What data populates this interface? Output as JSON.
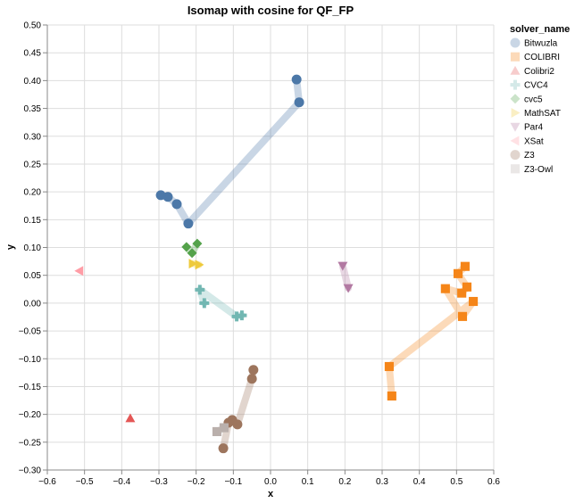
{
  "chart_data": {
    "type": "scatter",
    "title": "Isomap with cosine for QF_FP",
    "xlabel": "x",
    "ylabel": "y",
    "xlim": [
      -0.6,
      0.6
    ],
    "ylim": [
      -0.3,
      0.5
    ],
    "x_ticks": [
      "−0.6",
      "−0.5",
      "−0.4",
      "−0.3",
      "−0.2",
      "−0.1",
      "0.0",
      "0.1",
      "0.2",
      "0.3",
      "0.4",
      "0.5",
      "0.6"
    ],
    "x_tick_values": [
      -0.6,
      -0.5,
      -0.4,
      -0.3,
      -0.2,
      -0.1,
      0.0,
      0.1,
      0.2,
      0.3,
      0.4,
      0.5,
      0.6
    ],
    "y_ticks": [
      "−0.30",
      "−0.25",
      "−0.20",
      "−0.15",
      "−0.10",
      "−0.05",
      "0.00",
      "0.05",
      "0.10",
      "0.15",
      "0.20",
      "0.25",
      "0.30",
      "0.35",
      "0.40",
      "0.45",
      "0.50"
    ],
    "y_tick_values": [
      -0.3,
      -0.25,
      -0.2,
      -0.15,
      -0.1,
      -0.05,
      0.0,
      0.05,
      0.1,
      0.15,
      0.2,
      0.25,
      0.3,
      0.35,
      0.4,
      0.45,
      0.5
    ],
    "grid": true,
    "legend": {
      "title": "solver_name",
      "placement": "right"
    },
    "series": [
      {
        "name": "Bitwuzla",
        "shape": "circle",
        "color": "#4c78a8",
        "points": [
          [
            0.07,
            0.402
          ],
          [
            0.077,
            0.361
          ],
          [
            -0.221,
            0.143
          ],
          [
            -0.252,
            0.178
          ],
          [
            -0.276,
            0.191
          ],
          [
            -0.295,
            0.194
          ]
        ]
      },
      {
        "name": "COLIBRI",
        "shape": "square",
        "color": "#f58518",
        "points": [
          [
            0.326,
            -0.167
          ],
          [
            0.319,
            -0.114
          ],
          [
            0.545,
            0.003
          ],
          [
            0.516,
            -0.024
          ],
          [
            0.47,
            0.026
          ],
          [
            0.514,
            0.018
          ],
          [
            0.528,
            0.029
          ],
          [
            0.504,
            0.053
          ],
          [
            0.523,
            0.066
          ]
        ]
      },
      {
        "name": "Colibri2",
        "shape": "triangle-up",
        "color": "#e45756",
        "points": [
          [
            -0.377,
            -0.207
          ]
        ]
      },
      {
        "name": "CVC4",
        "shape": "cross",
        "color": "#72b7b2",
        "points": [
          [
            -0.178,
            0.0
          ],
          [
            -0.19,
            0.024
          ],
          [
            -0.091,
            -0.024
          ],
          [
            -0.077,
            -0.022
          ]
        ]
      },
      {
        "name": "cvc5",
        "shape": "diamond",
        "color": "#54a24b",
        "points": [
          [
            -0.226,
            0.101
          ],
          [
            -0.211,
            0.09
          ],
          [
            -0.197,
            0.107
          ]
        ]
      },
      {
        "name": "MathSAT",
        "shape": "triangle-right",
        "color": "#eeca3b",
        "points": [
          [
            -0.209,
            0.071
          ],
          [
            -0.192,
            0.069
          ]
        ]
      },
      {
        "name": "Par4",
        "shape": "triangle-down",
        "color": "#b279a2",
        "points": [
          [
            0.194,
            0.067
          ],
          [
            0.209,
            0.027
          ]
        ]
      },
      {
        "name": "XSat",
        "shape": "triangle-left",
        "color": "#ff9da6",
        "points": [
          [
            -0.514,
            0.058
          ]
        ]
      },
      {
        "name": "Z3",
        "shape": "circle",
        "color": "#9d755d",
        "points": [
          [
            -0.046,
            -0.12
          ],
          [
            -0.05,
            -0.136
          ],
          [
            -0.089,
            -0.218
          ],
          [
            -0.103,
            -0.21
          ],
          [
            -0.113,
            -0.215
          ],
          [
            -0.127,
            -0.261
          ]
        ]
      },
      {
        "name": "Z3-Owl",
        "shape": "square",
        "color": "#bab0ac",
        "points": [
          [
            -0.144,
            -0.231
          ],
          [
            -0.125,
            -0.224
          ]
        ]
      }
    ]
  }
}
